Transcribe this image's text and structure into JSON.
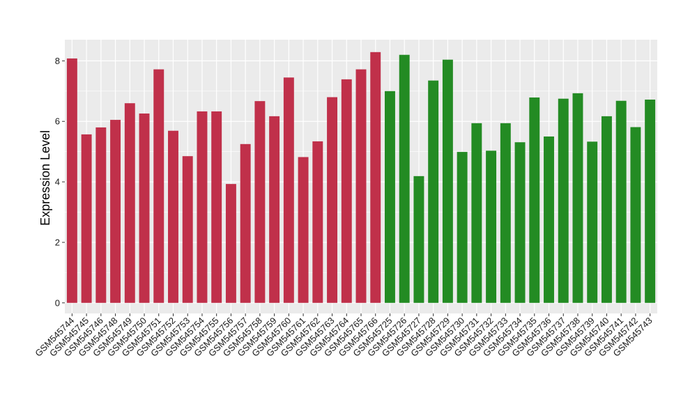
{
  "chart_data": {
    "type": "bar",
    "ylabel": "Expression Level",
    "xlabel": "",
    "ylim": [
      -0.35,
      8.7
    ],
    "yticks": [
      0,
      2,
      4,
      6,
      8
    ],
    "grid": true,
    "categories": [
      "GSM545744",
      "GSM545745",
      "GSM545746",
      "GSM545748",
      "GSM545749",
      "GSM545750",
      "GSM545751",
      "GSM545752",
      "GSM545753",
      "GSM545754",
      "GSM545755",
      "GSM545756",
      "GSM545757",
      "GSM545758",
      "GSM545759",
      "GSM545760",
      "GSM545761",
      "GSM545762",
      "GSM545763",
      "GSM545764",
      "GSM545765",
      "GSM545766",
      "GSM545725",
      "GSM545726",
      "GSM545727",
      "GSM545728",
      "GSM545729",
      "GSM545730",
      "GSM545731",
      "GSM545732",
      "GSM545733",
      "GSM545734",
      "GSM545735",
      "GSM545736",
      "GSM545737",
      "GSM545738",
      "GSM545739",
      "GSM545740",
      "GSM545741",
      "GSM545742",
      "GSM545743"
    ],
    "values": [
      8.08,
      5.57,
      5.8,
      6.05,
      6.6,
      6.26,
      7.72,
      5.69,
      4.85,
      6.33,
      6.33,
      3.93,
      5.25,
      6.67,
      6.17,
      7.45,
      4.82,
      5.34,
      6.8,
      7.39,
      7.72,
      8.29,
      7.0,
      8.2,
      4.19,
      7.35,
      8.04,
      4.99,
      5.94,
      5.03,
      5.94,
      5.31,
      6.79,
      5.5,
      6.75,
      6.93,
      5.33,
      6.17,
      6.68,
      5.81,
      6.72
    ],
    "colors": [
      "#c0304a",
      "#c0304a",
      "#c0304a",
      "#c0304a",
      "#c0304a",
      "#c0304a",
      "#c0304a",
      "#c0304a",
      "#c0304a",
      "#c0304a",
      "#c0304a",
      "#c0304a",
      "#c0304a",
      "#c0304a",
      "#c0304a",
      "#c0304a",
      "#c0304a",
      "#c0304a",
      "#c0304a",
      "#c0304a",
      "#c0304a",
      "#c0304a",
      "#238b23",
      "#238b23",
      "#238b23",
      "#238b23",
      "#238b23",
      "#238b23",
      "#238b23",
      "#238b23",
      "#238b23",
      "#238b23",
      "#238b23",
      "#238b23",
      "#238b23",
      "#238b23",
      "#238b23",
      "#238b23",
      "#238b23",
      "#238b23",
      "#238b23"
    ],
    "panel_color": "#ebebeb",
    "grid_color": "#ffffff"
  }
}
